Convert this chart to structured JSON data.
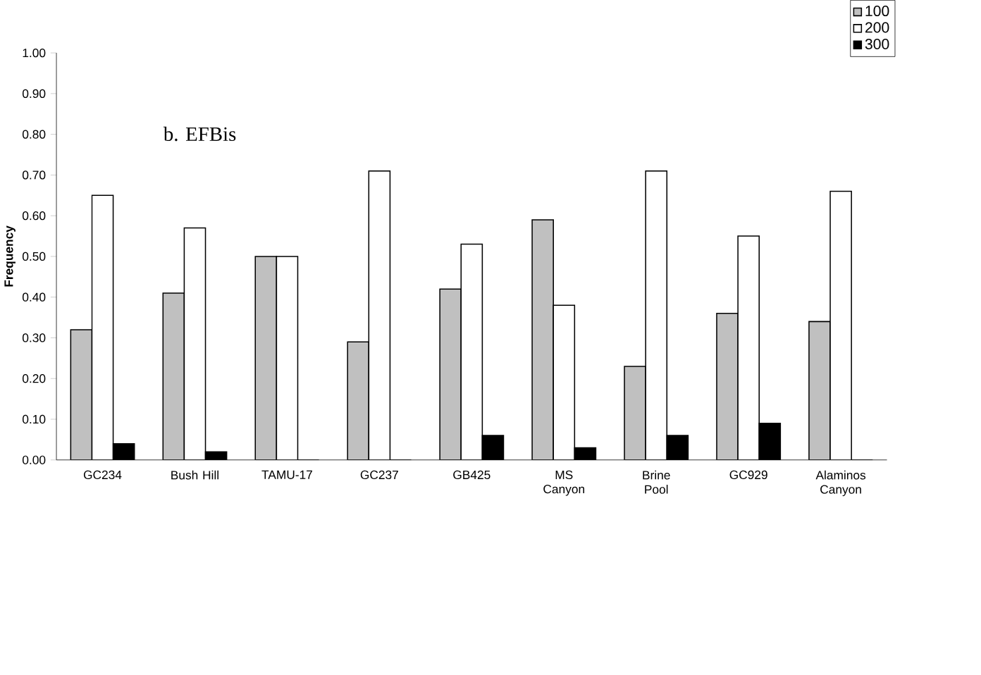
{
  "chart_data": {
    "type": "bar",
    "title": "b.  EFBis",
    "ylabel": "Frequency",
    "categories": [
      "GC234",
      "Bush Hill",
      "TAMU-17",
      "GC237",
      "GB425",
      "MS Canyon",
      "Brine Pool",
      "GC929",
      "Alaminos Canyon"
    ],
    "series": [
      {
        "name": "100",
        "color": "#c0c0c0",
        "values": [
          0.32,
          0.41,
          0.5,
          0.29,
          0.42,
          0.59,
          0.23,
          0.36,
          0.34
        ]
      },
      {
        "name": "200",
        "color": "#ffffff",
        "values": [
          0.65,
          0.57,
          0.5,
          0.71,
          0.53,
          0.38,
          0.71,
          0.55,
          0.66
        ]
      },
      {
        "name": "300",
        "color": "#000000",
        "values": [
          0.04,
          0.02,
          0,
          0,
          0.06,
          0.03,
          0.06,
          0.09,
          0
        ]
      }
    ],
    "ylim": [
      0,
      1
    ],
    "yticks": [
      {
        "value": 0,
        "label": "0.00"
      },
      {
        "value": 0.1,
        "label": "0.10"
      },
      {
        "value": 0.2,
        "label": "0.20"
      },
      {
        "value": 0.3,
        "label": "0.30"
      },
      {
        "value": 0.4,
        "label": "0.40"
      },
      {
        "value": 0.5,
        "label": "0.50"
      },
      {
        "value": 0.6,
        "label": "0.60"
      },
      {
        "value": 0.7,
        "label": "0.70"
      },
      {
        "value": 0.8,
        "label": "0.80"
      },
      {
        "value": 0.9,
        "label": "0.90"
      },
      {
        "value": 1,
        "label": "1.00"
      }
    ],
    "legend": "top right",
    "grid": false
  }
}
